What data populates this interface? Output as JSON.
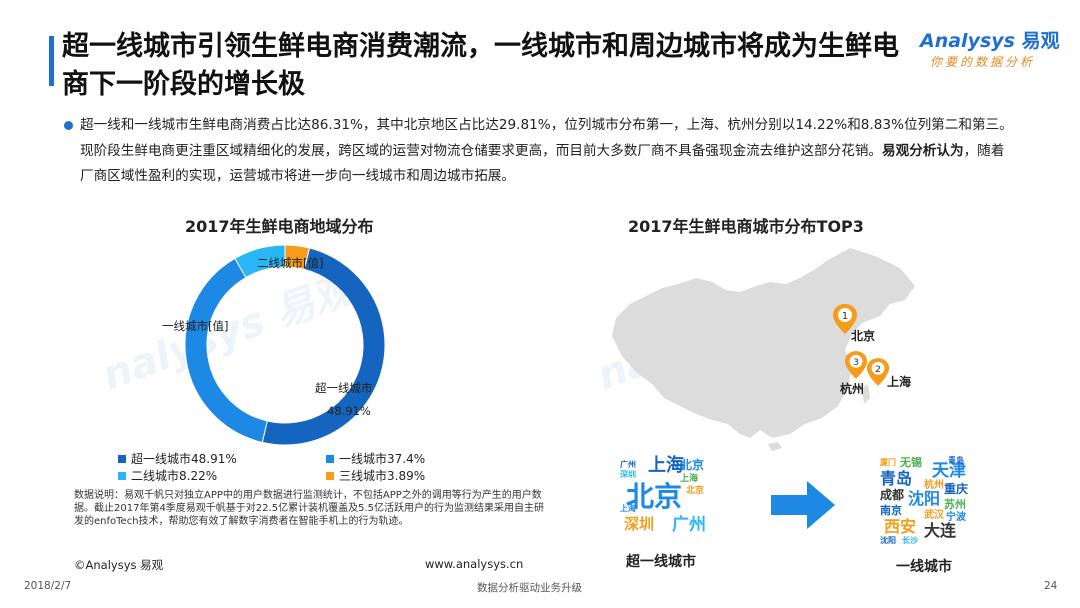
{
  "title": "超一线城市引领生鲜电商消费潮流，一线城市和周边城市将成为生鲜电商下一阶段的增长极",
  "logo": {
    "brand": "Analysys",
    "brand_cn": "易观",
    "tagline": "你要的数据分析"
  },
  "paragraph": {
    "part1": "超一线和一线城市生鲜电商消费占比达86.31%，其中北京地区占比达29.81%，位列城市分布第一，上海、杭州分别以14.22%和8.83%位列第二和第三。现阶段生鲜电商更注重区域精细化的发展，跨区域的运营对物流仓储要求更高，而目前大多数厂商不具备强现金流去维护这部分花销。",
    "bold": "易观分析认为",
    "part2": "，随着厂商区域性盈利的实现，运营城市将进一步向一线城市和周边城市拓展。"
  },
  "left_chart_title": "2017年生鲜电商地域分布",
  "right_chart_title": "2017年生鲜电商城市分布TOP3",
  "chart_data": {
    "type": "pie",
    "title": "2017年生鲜电商地域分布",
    "categories": [
      "超一线城市",
      "一线城市",
      "二线城市",
      "三线城市"
    ],
    "values": [
      48.91,
      37.4,
      8.22,
      3.89
    ],
    "colors": [
      "#1565c0",
      "#1e88e5",
      "#29b6f6",
      "#f59c1a"
    ],
    "legend_labels": [
      "超一线城市48.91%",
      "一线城市37.4%",
      "二线城市8.22%",
      "三线城市3.89%"
    ],
    "data_labels": {
      "second_tier": "二线城市[值]",
      "first_tier": "一线城市[值]",
      "super_first_name": "超一线城市",
      "super_first_value": "48.91%"
    },
    "legend_position": "bottom"
  },
  "map": {
    "map_color": "#dcdcdc",
    "pin_color": "#f59c1a",
    "pins": [
      {
        "rank": "1",
        "city": "北京"
      },
      {
        "rank": "2",
        "city": "上海"
      },
      {
        "rank": "3",
        "city": "杭州"
      }
    ]
  },
  "wordcloud_super": {
    "label": "超一线城市",
    "words": [
      "北京",
      "上海",
      "深圳",
      "广州",
      "北京",
      "上海",
      "广州",
      "深圳",
      "北京",
      "上海"
    ]
  },
  "wordcloud_first": {
    "label": "一线城市",
    "words": [
      "厦门",
      "无锡",
      "青岛",
      "天津",
      "杭州",
      "重庆",
      "成都",
      "沈阳",
      "苏州",
      "南京",
      "西安",
      "武汉",
      "宁波",
      "大连",
      "沈阳",
      "长沙",
      "青岛"
    ]
  },
  "note": "数据说明：易观千帆只对独立APP中的用户数据进行监测统计，不包括APP之外的调用等行为产生的用户数据。截止2017年第4季度易观千帆基于对22.5亿累计装机覆盖及5.5亿活跃用户的行为监测结果采用自主研发的enfoTech技术，帮助您有效了解数字消费者在智能手机上的行为轨迹。",
  "footer": {
    "copyright": "©Analysys 易观",
    "website": "www.analysys.cn",
    "date": "2018/2/7",
    "slogan": "数据分析驱动业务升级",
    "page": "24"
  }
}
